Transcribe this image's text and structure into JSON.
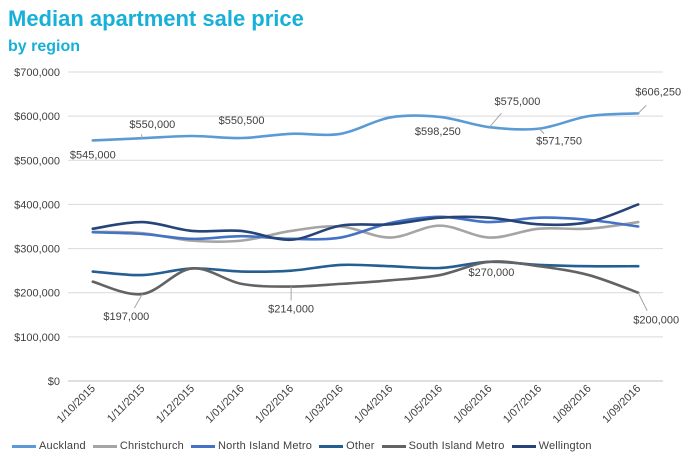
{
  "chart_data": {
    "type": "line",
    "title": "Median apartment sale price",
    "subtitle": "by region",
    "xlabel": "",
    "ylabel": "",
    "ylim": [
      0,
      700000
    ],
    "yticks": [
      0,
      100000,
      200000,
      300000,
      400000,
      500000,
      600000,
      700000
    ],
    "ytick_labels": [
      "$0",
      "$100,000",
      "$200,000",
      "$300,000",
      "$400,000",
      "$500,000",
      "$600,000",
      "$700,000"
    ],
    "grid": true,
    "legend_position": "bottom",
    "categories": [
      "1/10/2015",
      "1/11/2015",
      "1/12/2015",
      "1/01/2016",
      "1/02/2016",
      "1/03/2016",
      "1/04/2016",
      "1/05/2016",
      "1/06/2016",
      "1/07/2016",
      "1/08/2016",
      "1/09/2016"
    ],
    "series": [
      {
        "name": "Auckland",
        "color": "#5b9bd5",
        "values": [
          545000,
          550000,
          555000,
          550500,
          560000,
          560000,
          597000,
          598250,
          575000,
          571750,
          600000,
          606250
        ]
      },
      {
        "name": "Christchurch",
        "color": "#a5a5a5",
        "values": [
          338000,
          335000,
          318000,
          318000,
          340000,
          350000,
          325000,
          352000,
          325000,
          345000,
          345000,
          360000
        ]
      },
      {
        "name": "North Island Metro",
        "color": "#4472c4",
        "values": [
          337000,
          333000,
          322000,
          328000,
          322000,
          325000,
          358000,
          372000,
          360000,
          370000,
          365000,
          350000
        ]
      },
      {
        "name": "Other",
        "color": "#255e91",
        "values": [
          248000,
          240000,
          255000,
          248000,
          250000,
          263000,
          260000,
          256000,
          270000,
          263000,
          260000,
          260000
        ]
      },
      {
        "name": "South Island Metro",
        "color": "#636363",
        "values": [
          225000,
          197000,
          255000,
          220000,
          214000,
          220000,
          228000,
          240000,
          270000,
          260000,
          240000,
          200000
        ]
      },
      {
        "name": "Wellington",
        "color": "#264478",
        "values": [
          345000,
          360000,
          340000,
          340000,
          320000,
          352000,
          355000,
          370000,
          370000,
          355000,
          360000,
          400000
        ]
      }
    ],
    "annotations": [
      {
        "series": 0,
        "index": 0,
        "text": "$545,000"
      },
      {
        "series": 0,
        "index": 1,
        "text": "$550,000"
      },
      {
        "series": 0,
        "index": 3,
        "text": "$550,500"
      },
      {
        "series": 0,
        "index": 7,
        "text": "$598,250"
      },
      {
        "series": 0,
        "index": 8,
        "text": "$575,000"
      },
      {
        "series": 0,
        "index": 9,
        "text": "$571,750"
      },
      {
        "series": 0,
        "index": 11,
        "text": "$606,250"
      },
      {
        "series": 4,
        "index": 1,
        "text": "$197,000"
      },
      {
        "series": 4,
        "index": 4,
        "text": "$214,000"
      },
      {
        "series": 4,
        "index": 8,
        "text": "$270,000"
      },
      {
        "series": 4,
        "index": 11,
        "text": "$200,000"
      }
    ]
  }
}
